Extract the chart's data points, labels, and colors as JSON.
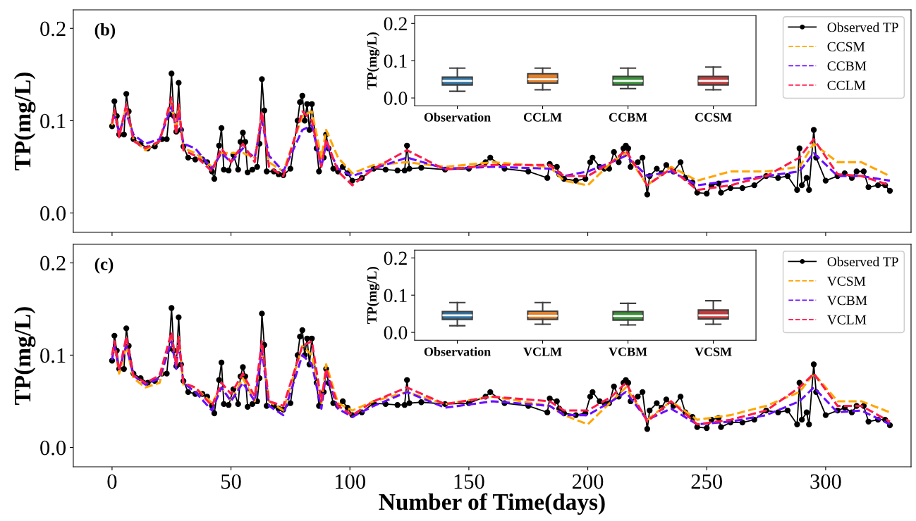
{
  "chart_data": [
    {
      "type": "line",
      "ylabel": "TP(mg/L)",
      "annotations": [
        "(b)"
      ],
      "xlim": [
        -16.3,
        335.9
      ],
      "ylim": [
        -0.021,
        0.22
      ],
      "xticks": [
        0,
        50,
        100,
        150,
        200,
        250,
        300
      ],
      "yticks": [
        {
          "value": 0,
          "label": "0.0"
        },
        {
          "value": 0.1,
          "label": "0.1"
        },
        {
          "value": 0.2,
          "label": "0.2"
        }
      ],
      "tick_labels": "y",
      "legend": "top right",
      "grid": false,
      "x": [
        0,
        1,
        3,
        6,
        9,
        14,
        20,
        25,
        27,
        28,
        30,
        35,
        42,
        46,
        50,
        55,
        60,
        63,
        66,
        72,
        80,
        84,
        88,
        90,
        95,
        101,
        110,
        124,
        140,
        160,
        184,
        190,
        200,
        210,
        216,
        225,
        235,
        246,
        260,
        275,
        289,
        295,
        305,
        315,
        327
      ],
      "series": [
        {
          "name": "Observed TP",
          "color": "#000000",
          "marker": "circle",
          "line_style": "solid",
          "x": [
            0,
            1,
            2,
            3,
            5,
            6,
            7,
            9,
            12,
            15,
            18,
            21,
            23,
            24,
            25,
            26,
            27,
            28,
            29,
            30,
            32,
            35,
            38,
            40,
            42,
            43,
            45,
            46,
            47,
            49,
            51,
            53,
            54,
            55,
            56,
            57,
            59,
            61,
            62,
            63,
            64,
            65,
            68,
            70,
            72,
            75,
            78,
            79,
            80,
            81,
            82,
            83,
            84,
            86,
            87,
            89,
            90,
            91,
            93,
            95,
            97,
            99,
            101,
            105,
            110,
            115,
            120,
            123,
            124,
            125,
            130,
            140,
            150,
            157,
            159,
            165,
            175,
            183,
            184,
            187,
            188,
            190,
            195,
            199,
            201,
            202,
            205,
            207,
            209,
            211,
            213,
            215,
            216,
            217,
            218,
            221,
            223,
            225,
            226,
            229,
            231,
            233,
            236,
            239,
            241,
            244,
            246,
            250,
            252,
            255,
            256,
            260,
            265,
            270,
            275,
            280,
            284,
            288,
            289,
            290,
            292,
            293,
            295,
            296,
            300,
            305,
            308,
            311,
            313,
            316,
            318,
            322,
            325,
            327
          ],
          "values": [
            0.094,
            0.121,
            0.105,
            0.085,
            0.085,
            0.129,
            0.11,
            0.08,
            0.075,
            0.07,
            0.072,
            0.08,
            0.08,
            0.107,
            0.151,
            0.105,
            0.088,
            0.141,
            0.09,
            0.072,
            0.06,
            0.058,
            0.058,
            0.055,
            0.045,
            0.037,
            0.073,
            0.092,
            0.047,
            0.046,
            0.063,
            0.047,
            0.077,
            0.087,
            0.077,
            0.044,
            0.047,
            0.05,
            0.075,
            0.145,
            0.111,
            0.045,
            0.045,
            0.042,
            0.041,
            0.048,
            0.1,
            0.12,
            0.127,
            0.1,
            0.118,
            0.09,
            0.118,
            0.07,
            0.045,
            0.06,
            0.085,
            0.07,
            0.048,
            0.045,
            0.05,
            0.043,
            0.035,
            0.038,
            0.048,
            0.047,
            0.046,
            0.046,
            0.073,
            0.048,
            0.049,
            0.047,
            0.048,
            0.055,
            0.06,
            0.048,
            0.045,
            0.038,
            0.053,
            0.05,
            0.042,
            0.037,
            0.035,
            0.037,
            0.055,
            0.06,
            0.05,
            0.048,
            0.048,
            0.066,
            0.055,
            0.07,
            0.073,
            0.07,
            0.05,
            0.055,
            0.06,
            0.02,
            0.04,
            0.048,
            0.043,
            0.052,
            0.045,
            0.055,
            0.038,
            0.033,
            0.022,
            0.021,
            0.03,
            0.032,
            0.022,
            0.027,
            0.027,
            0.03,
            0.04,
            0.038,
            0.04,
            0.025,
            0.07,
            0.03,
            0.038,
            0.025,
            0.09,
            0.06,
            0.035,
            0.04,
            0.043,
            0.038,
            0.045,
            0.045,
            0.028,
            0.03,
            0.03,
            0.024
          ]
        },
        {
          "name": "CCSM",
          "color": "#ffa500",
          "line_style": "dashed",
          "values": [
            0.095,
            0.11,
            0.085,
            0.115,
            0.08,
            0.068,
            0.078,
            0.12,
            0.088,
            0.115,
            0.07,
            0.065,
            0.05,
            0.065,
            0.065,
            0.065,
            0.06,
            0.105,
            0.055,
            0.045,
            0.105,
            0.11,
            0.06,
            0.09,
            0.06,
            0.043,
            0.052,
            0.055,
            0.05,
            0.055,
            0.05,
            0.035,
            0.03,
            0.055,
            0.065,
            0.03,
            0.05,
            0.035,
            0.045,
            0.045,
            0.05,
            0.075,
            0.055,
            0.055,
            0.04
          ]
        },
        {
          "name": "CCBM",
          "color": "#6a0dff",
          "line_style": "dashed",
          "values": [
            0.1,
            0.105,
            0.088,
            0.108,
            0.085,
            0.075,
            0.08,
            0.115,
            0.09,
            0.11,
            0.075,
            0.07,
            0.048,
            0.065,
            0.055,
            0.07,
            0.06,
            0.1,
            0.062,
            0.045,
            0.09,
            0.095,
            0.05,
            0.075,
            0.048,
            0.04,
            0.048,
            0.06,
            0.048,
            0.05,
            0.048,
            0.04,
            0.045,
            0.055,
            0.062,
            0.04,
            0.045,
            0.03,
            0.035,
            0.04,
            0.045,
            0.065,
            0.04,
            0.04,
            0.035
          ]
        },
        {
          "name": "CCLM",
          "color": "#ff1a4a",
          "line_style": "dashed",
          "values": [
            0.097,
            0.112,
            0.082,
            0.118,
            0.078,
            0.07,
            0.078,
            0.125,
            0.085,
            0.118,
            0.068,
            0.062,
            0.045,
            0.07,
            0.055,
            0.075,
            0.055,
            0.11,
            0.05,
            0.04,
            0.11,
            0.1,
            0.05,
            0.08,
            0.045,
            0.03,
            0.048,
            0.068,
            0.047,
            0.052,
            0.052,
            0.04,
            0.04,
            0.055,
            0.068,
            0.03,
            0.048,
            0.025,
            0.03,
            0.04,
            0.06,
            0.08,
            0.042,
            0.04,
            0.03
          ]
        }
      ]
    },
    {
      "type": "box",
      "ylabel": "TP(mg/L)",
      "categories": [
        "Observation",
        "CCLM",
        "CCBM",
        "CCSM"
      ],
      "colors": [
        "#3274a1",
        "#e1812c",
        "#3a923a",
        "#c03d3e"
      ],
      "ylim": [
        -0.021,
        0.221
      ],
      "yticks": [
        {
          "value": 0,
          "label": "0.0"
        },
        {
          "value": 0.1,
          "label": "0.1"
        },
        {
          "value": 0.2,
          "label": "0.2"
        }
      ],
      "grid": false,
      "boxes": [
        {
          "low": 0.018,
          "q1": 0.035,
          "median": 0.046,
          "q3": 0.056,
          "high": 0.08
        },
        {
          "low": 0.022,
          "q1": 0.04,
          "median": 0.05,
          "q3": 0.065,
          "high": 0.08
        },
        {
          "low": 0.025,
          "q1": 0.035,
          "median": 0.046,
          "q3": 0.058,
          "high": 0.08
        },
        {
          "low": 0.022,
          "q1": 0.035,
          "median": 0.046,
          "q3": 0.058,
          "high": 0.083
        }
      ]
    },
    {
      "type": "line",
      "xlabel": "Number of Time(days)",
      "ylabel": "TP(mg/L)",
      "annotations": [
        "(c)"
      ],
      "xlim": [
        -16.3,
        335.9
      ],
      "ylim": [
        -0.021,
        0.22
      ],
      "xticks": [
        0,
        50,
        100,
        150,
        200,
        250,
        300
      ],
      "yticks": [
        {
          "value": 0,
          "label": "0.0"
        },
        {
          "value": 0.1,
          "label": "0.1"
        },
        {
          "value": 0.2,
          "label": "0.2"
        }
      ],
      "legend": "top right",
      "grid": false,
      "x": [
        0,
        1,
        3,
        6,
        9,
        14,
        20,
        25,
        27,
        28,
        30,
        35,
        42,
        46,
        50,
        55,
        60,
        63,
        66,
        72,
        80,
        84,
        88,
        90,
        95,
        101,
        110,
        124,
        140,
        160,
        184,
        190,
        200,
        210,
        216,
        225,
        235,
        246,
        260,
        275,
        289,
        295,
        305,
        315,
        327
      ],
      "series": [
        {
          "name": "Observed TP",
          "color": "#000000",
          "marker": "circle",
          "line_style": "solid",
          "x": [
            0,
            1,
            2,
            3,
            5,
            6,
            7,
            9,
            12,
            15,
            18,
            21,
            23,
            24,
            25,
            26,
            27,
            28,
            29,
            30,
            32,
            35,
            38,
            40,
            42,
            43,
            45,
            46,
            47,
            49,
            51,
            53,
            54,
            55,
            56,
            57,
            59,
            61,
            62,
            63,
            64,
            65,
            68,
            70,
            72,
            75,
            78,
            79,
            80,
            81,
            82,
            83,
            84,
            86,
            87,
            89,
            90,
            91,
            93,
            95,
            97,
            99,
            101,
            105,
            110,
            115,
            120,
            123,
            124,
            125,
            130,
            140,
            150,
            157,
            159,
            165,
            175,
            183,
            184,
            187,
            188,
            190,
            195,
            199,
            201,
            202,
            205,
            207,
            209,
            211,
            213,
            215,
            216,
            217,
            218,
            221,
            223,
            225,
            226,
            229,
            231,
            233,
            236,
            239,
            241,
            244,
            246,
            250,
            252,
            255,
            256,
            260,
            265,
            270,
            275,
            280,
            284,
            288,
            289,
            290,
            292,
            293,
            295,
            296,
            300,
            305,
            308,
            311,
            313,
            316,
            318,
            322,
            325,
            327
          ],
          "values": [
            0.094,
            0.121,
            0.105,
            0.085,
            0.085,
            0.129,
            0.11,
            0.08,
            0.075,
            0.07,
            0.072,
            0.08,
            0.08,
            0.107,
            0.151,
            0.105,
            0.088,
            0.141,
            0.09,
            0.072,
            0.06,
            0.058,
            0.058,
            0.055,
            0.045,
            0.037,
            0.073,
            0.092,
            0.047,
            0.046,
            0.063,
            0.047,
            0.077,
            0.087,
            0.077,
            0.044,
            0.047,
            0.05,
            0.075,
            0.145,
            0.111,
            0.045,
            0.045,
            0.042,
            0.041,
            0.048,
            0.1,
            0.12,
            0.127,
            0.1,
            0.118,
            0.09,
            0.118,
            0.07,
            0.045,
            0.06,
            0.085,
            0.07,
            0.048,
            0.045,
            0.05,
            0.043,
            0.035,
            0.038,
            0.048,
            0.047,
            0.046,
            0.046,
            0.073,
            0.048,
            0.049,
            0.047,
            0.048,
            0.055,
            0.06,
            0.048,
            0.045,
            0.038,
            0.053,
            0.05,
            0.042,
            0.037,
            0.035,
            0.037,
            0.055,
            0.06,
            0.05,
            0.048,
            0.048,
            0.066,
            0.055,
            0.07,
            0.073,
            0.07,
            0.05,
            0.055,
            0.06,
            0.02,
            0.04,
            0.048,
            0.043,
            0.052,
            0.045,
            0.055,
            0.038,
            0.033,
            0.022,
            0.021,
            0.03,
            0.032,
            0.022,
            0.027,
            0.027,
            0.03,
            0.04,
            0.038,
            0.04,
            0.025,
            0.07,
            0.03,
            0.038,
            0.025,
            0.09,
            0.06,
            0.035,
            0.04,
            0.043,
            0.038,
            0.045,
            0.045,
            0.028,
            0.03,
            0.03,
            0.024
          ]
        },
        {
          "name": "VCSM",
          "color": "#ffa500",
          "line_style": "dashed",
          "values": [
            0.1,
            0.11,
            0.08,
            0.11,
            0.075,
            0.065,
            0.07,
            0.12,
            0.09,
            0.12,
            0.068,
            0.065,
            0.048,
            0.065,
            0.05,
            0.075,
            0.05,
            0.11,
            0.05,
            0.04,
            0.11,
            0.1,
            0.048,
            0.09,
            0.048,
            0.04,
            0.05,
            0.06,
            0.047,
            0.055,
            0.045,
            0.035,
            0.025,
            0.05,
            0.065,
            0.03,
            0.05,
            0.03,
            0.035,
            0.045,
            0.06,
            0.08,
            0.05,
            0.05,
            0.038
          ]
        },
        {
          "name": "VCBM",
          "color": "#6a0dff",
          "line_style": "dashed",
          "values": [
            0.095,
            0.11,
            0.085,
            0.11,
            0.078,
            0.068,
            0.075,
            0.115,
            0.085,
            0.115,
            0.07,
            0.06,
            0.04,
            0.065,
            0.05,
            0.07,
            0.05,
            0.105,
            0.045,
            0.035,
            0.1,
            0.09,
            0.042,
            0.08,
            0.042,
            0.033,
            0.045,
            0.06,
            0.043,
            0.05,
            0.045,
            0.035,
            0.035,
            0.05,
            0.06,
            0.03,
            0.042,
            0.025,
            0.028,
            0.035,
            0.05,
            0.065,
            0.038,
            0.04,
            0.025
          ]
        },
        {
          "name": "VCLM",
          "color": "#ff1a4a",
          "line_style": "dashed",
          "values": [
            0.1,
            0.115,
            0.083,
            0.12,
            0.078,
            0.07,
            0.078,
            0.125,
            0.088,
            0.12,
            0.07,
            0.065,
            0.045,
            0.07,
            0.058,
            0.08,
            0.055,
            0.115,
            0.05,
            0.045,
            0.11,
            0.115,
            0.05,
            0.085,
            0.045,
            0.035,
            0.05,
            0.065,
            0.047,
            0.055,
            0.05,
            0.04,
            0.04,
            0.055,
            0.07,
            0.028,
            0.05,
            0.025,
            0.03,
            0.04,
            0.065,
            0.08,
            0.045,
            0.045,
            0.028
          ]
        }
      ]
    },
    {
      "type": "box",
      "ylabel": "TP(mg/L)",
      "categories": [
        "Observation",
        "VCLM",
        "VCBM",
        "VCSM"
      ],
      "colors": [
        "#3274a1",
        "#e1812c",
        "#3a923a",
        "#c03d3e"
      ],
      "ylim": [
        -0.021,
        0.221
      ],
      "yticks": [
        {
          "value": 0,
          "label": "0.0"
        },
        {
          "value": 0.1,
          "label": "0.1"
        },
        {
          "value": 0.2,
          "label": "0.2"
        }
      ],
      "grid": false,
      "boxes": [
        {
          "low": 0.018,
          "q1": 0.035,
          "median": 0.046,
          "q3": 0.056,
          "high": 0.08
        },
        {
          "low": 0.022,
          "q1": 0.035,
          "median": 0.045,
          "q3": 0.057,
          "high": 0.08
        },
        {
          "low": 0.02,
          "q1": 0.033,
          "median": 0.044,
          "q3": 0.056,
          "high": 0.078
        },
        {
          "low": 0.022,
          "q1": 0.036,
          "median": 0.046,
          "q3": 0.06,
          "high": 0.085
        }
      ]
    }
  ]
}
